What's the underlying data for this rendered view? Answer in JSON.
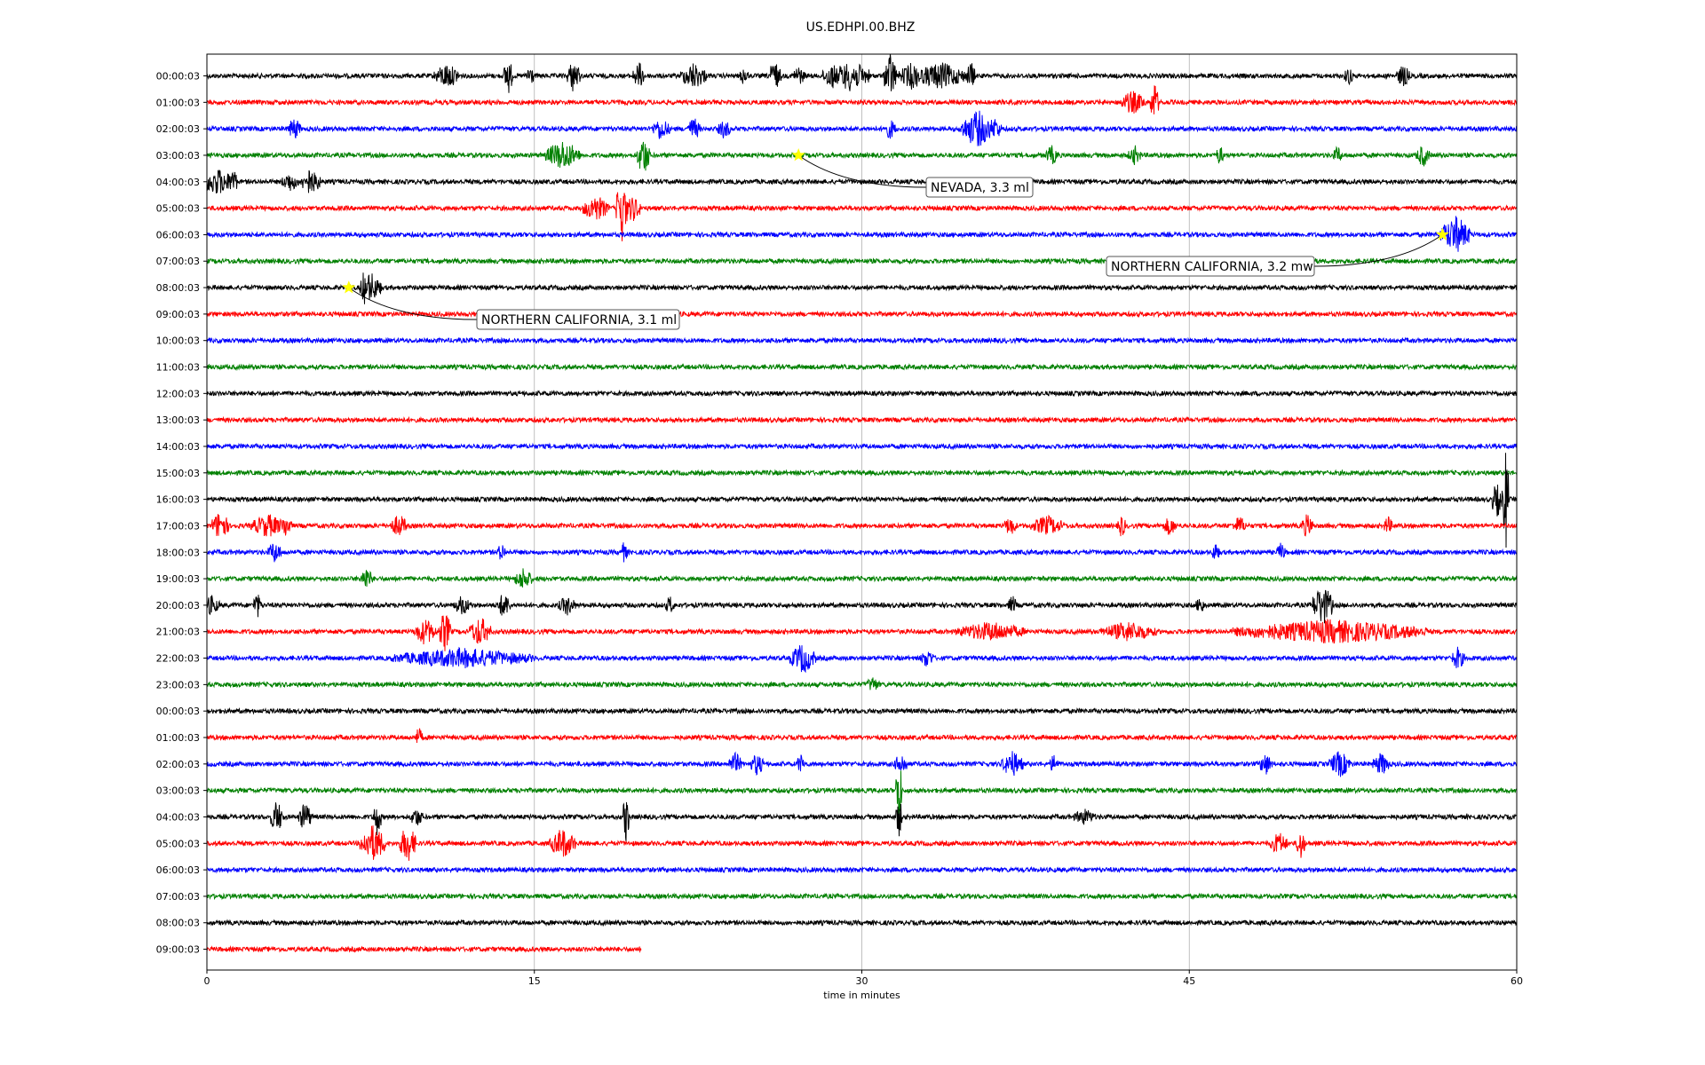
{
  "chart_data": {
    "type": "line",
    "title": "US.EDHPI.00.BHZ",
    "xlabel": "time in minutes",
    "xlim": [
      0,
      60
    ],
    "x_ticks": [
      0,
      15,
      30,
      45,
      60
    ],
    "grid": "vertical",
    "trace_colors": [
      "#000000",
      "#ff0000",
      "#0000ff",
      "#008000"
    ],
    "traces": [
      {
        "label": "00:00:03",
        "end": 60,
        "bursts": [
          [
            11,
            0.6,
            15
          ],
          [
            13.8,
            0.2,
            24
          ],
          [
            14.8,
            0.2,
            14
          ],
          [
            16.8,
            0.3,
            20
          ],
          [
            19.8,
            0.3,
            16
          ],
          [
            22.3,
            0.6,
            16
          ],
          [
            24.6,
            0.2,
            12
          ],
          [
            26,
            0.3,
            18
          ],
          [
            27.1,
            0.3,
            12
          ],
          [
            28.6,
            0.4,
            16
          ],
          [
            29.5,
            0.9,
            18
          ],
          [
            31.3,
            0.3,
            28
          ],
          [
            32.3,
            0.6,
            16
          ],
          [
            33.6,
            1.2,
            16
          ],
          [
            35,
            0.2,
            18
          ],
          [
            52.3,
            0.2,
            12
          ],
          [
            54.8,
            0.3,
            14
          ]
        ]
      },
      {
        "label": "01:00:03",
        "end": 60,
        "bursts": [
          [
            42.4,
            0.6,
            14
          ],
          [
            43.4,
            0.2,
            24
          ]
        ]
      },
      {
        "label": "02:00:03",
        "end": 60,
        "bursts": [
          [
            4,
            0.3,
            14
          ],
          [
            20.8,
            0.4,
            14
          ],
          [
            22.3,
            0.3,
            14
          ],
          [
            23.7,
            0.3,
            12
          ],
          [
            31.3,
            0.3,
            12
          ],
          [
            35.3,
            0.8,
            22
          ],
          [
            36.1,
            0.3,
            14
          ]
        ]
      },
      {
        "label": "03:00:03",
        "end": 60,
        "bursts": [
          [
            16.3,
            0.8,
            18
          ],
          [
            20,
            0.3,
            24
          ],
          [
            38.7,
            0.3,
            12
          ],
          [
            42.5,
            0.3,
            12
          ],
          [
            46.4,
            0.2,
            12
          ],
          [
            51.8,
            0.2,
            12
          ],
          [
            55.7,
            0.3,
            14
          ]
        ]
      },
      {
        "label": "04:00:03",
        "end": 60,
        "bursts": [
          [
            0.5,
            0.8,
            16
          ],
          [
            1.2,
            0.2,
            18
          ],
          [
            3.8,
            0.4,
            12
          ],
          [
            4.7,
            0.4,
            16
          ],
          [
            5,
            0.2,
            14
          ]
        ]
      },
      {
        "label": "05:00:03",
        "end": 60,
        "bursts": [
          [
            17.8,
            0.6,
            16
          ],
          [
            19,
            0.25,
            40
          ],
          [
            19.5,
            0.4,
            16
          ]
        ]
      },
      {
        "label": "06:00:03",
        "end": 60,
        "bursts": [
          [
            57.2,
            0.7,
            22
          ]
        ]
      },
      {
        "label": "07:00:03",
        "end": 60,
        "bursts": []
      },
      {
        "label": "08:00:03",
        "end": 60,
        "bursts": [
          [
            7.2,
            0.2,
            20
          ],
          [
            7.5,
            0.5,
            18
          ]
        ]
      },
      {
        "label": "09:00:03",
        "end": 60,
        "bursts": []
      },
      {
        "label": "10:00:03",
        "end": 60,
        "bursts": []
      },
      {
        "label": "11:00:03",
        "end": 60,
        "bursts": []
      },
      {
        "label": "12:00:03",
        "end": 60,
        "bursts": []
      },
      {
        "label": "13:00:03",
        "end": 60,
        "bursts": []
      },
      {
        "label": "14:00:03",
        "end": 60,
        "bursts": []
      },
      {
        "label": "15:00:03",
        "end": 60,
        "bursts": []
      },
      {
        "label": "16:00:03",
        "end": 60,
        "bursts": [
          [
            59.1,
            0.3,
            20
          ],
          [
            59.5,
            0.15,
            60
          ]
        ]
      },
      {
        "label": "17:00:03",
        "end": 60,
        "bursts": [
          [
            0.6,
            0.4,
            18
          ],
          [
            2.8,
            0.8,
            14
          ],
          [
            3.6,
            0.3,
            14
          ],
          [
            8.8,
            0.4,
            14
          ],
          [
            36.8,
            0.3,
            12
          ],
          [
            38.5,
            0.8,
            12
          ],
          [
            41.9,
            0.2,
            14
          ],
          [
            44.1,
            0.3,
            12
          ],
          [
            47.3,
            0.3,
            12
          ],
          [
            50.4,
            0.3,
            14
          ],
          [
            54.1,
            0.2,
            12
          ]
        ]
      },
      {
        "label": "18:00:03",
        "end": 60,
        "bursts": [
          [
            3.1,
            0.3,
            14
          ],
          [
            13.5,
            0.2,
            12
          ],
          [
            19.1,
            0.2,
            12
          ],
          [
            46.2,
            0.2,
            12
          ],
          [
            49.2,
            0.2,
            12
          ]
        ]
      },
      {
        "label": "19:00:03",
        "end": 60,
        "bursts": [
          [
            7.3,
            0.3,
            14
          ],
          [
            14.5,
            0.4,
            14
          ]
        ]
      },
      {
        "label": "20:00:03",
        "end": 60,
        "bursts": [
          [
            0.2,
            0.4,
            12
          ],
          [
            2.3,
            0.2,
            16
          ],
          [
            11.7,
            0.4,
            12
          ],
          [
            13.6,
            0.3,
            16
          ],
          [
            16.5,
            0.4,
            12
          ],
          [
            21.2,
            0.2,
            12
          ],
          [
            36.9,
            0.2,
            12
          ],
          [
            45.5,
            0.2,
            12
          ],
          [
            51.1,
            0.5,
            24
          ]
        ]
      },
      {
        "label": "21:00:03",
        "end": 60,
        "bursts": [
          [
            10,
            0.5,
            16
          ],
          [
            10.9,
            0.3,
            24
          ],
          [
            12.5,
            0.5,
            18
          ],
          [
            35.9,
            1.6,
            12
          ],
          [
            42.2,
            1.3,
            12
          ],
          [
            51.5,
            4.5,
            14
          ]
        ]
      },
      {
        "label": "22:00:03",
        "end": 60,
        "bursts": [
          [
            11.7,
            3.3,
            12
          ],
          [
            27.3,
            0.6,
            18
          ],
          [
            33,
            0.3,
            12
          ],
          [
            57.3,
            0.3,
            14
          ]
        ]
      },
      {
        "label": "23:00:03",
        "end": 60,
        "bursts": [
          [
            30.5,
            0.3,
            10
          ]
        ]
      },
      {
        "label": "00:00:03",
        "end": 60,
        "bursts": []
      },
      {
        "label": "01:00:03",
        "end": 60,
        "bursts": [
          [
            9.7,
            0.2,
            12
          ]
        ]
      },
      {
        "label": "02:00:03",
        "end": 60,
        "bursts": [
          [
            24.2,
            0.3,
            14
          ],
          [
            25.2,
            0.3,
            14
          ],
          [
            27.2,
            0.2,
            12
          ],
          [
            31.8,
            0.3,
            14
          ],
          [
            36.9,
            0.5,
            16
          ],
          [
            38.8,
            0.2,
            12
          ],
          [
            48.5,
            0.3,
            14
          ],
          [
            51.9,
            0.5,
            16
          ],
          [
            53.8,
            0.4,
            14
          ]
        ]
      },
      {
        "label": "03:00:03",
        "end": 60,
        "bursts": [
          [
            31.7,
            0.15,
            40
          ]
        ]
      },
      {
        "label": "04:00:03",
        "end": 60,
        "bursts": [
          [
            3.2,
            0.3,
            20
          ],
          [
            4.5,
            0.3,
            18
          ],
          [
            7.8,
            0.2,
            22
          ],
          [
            9.6,
            0.3,
            12
          ],
          [
            19.2,
            0.15,
            30
          ],
          [
            31.7,
            0.15,
            24
          ],
          [
            40.2,
            0.5,
            10
          ]
        ]
      },
      {
        "label": "05:00:03",
        "end": 60,
        "bursts": [
          [
            7.6,
            0.6,
            22
          ],
          [
            9.2,
            0.4,
            22
          ],
          [
            16.3,
            0.6,
            18
          ],
          [
            49.1,
            0.4,
            14
          ],
          [
            50.1,
            0.2,
            20
          ]
        ]
      },
      {
        "label": "06:00:03",
        "end": 60,
        "bursts": []
      },
      {
        "label": "07:00:03",
        "end": 60,
        "bursts": []
      },
      {
        "label": "08:00:03",
        "end": 60,
        "bursts": []
      },
      {
        "label": "09:00:03",
        "end": 19.9,
        "bursts": []
      }
    ],
    "events": [
      {
        "label": "NEVADA, 3.3 ml",
        "trace": 3,
        "minute": 27.1
      },
      {
        "label": "NORTHERN CALIFORNIA, 3.2 mw",
        "trace": 6,
        "minute": 56.6
      },
      {
        "label": "NORTHERN CALIFORNIA, 3.1 ml",
        "trace": 8,
        "minute": 6.5
      }
    ]
  }
}
